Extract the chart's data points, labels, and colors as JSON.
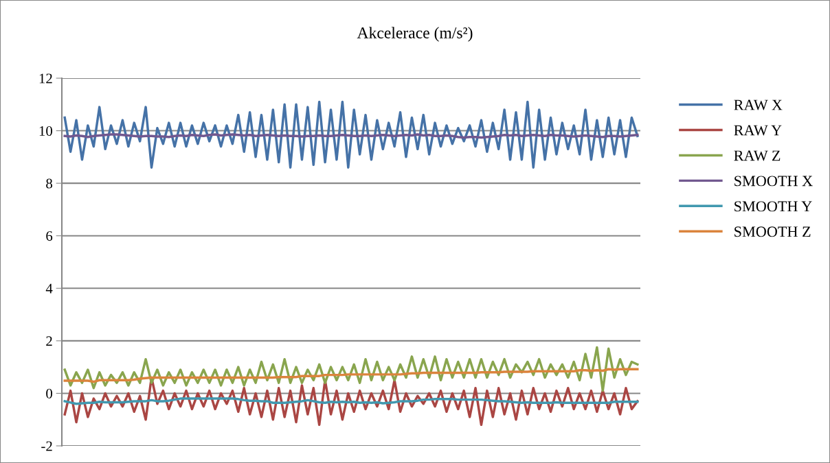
{
  "chart_data": {
    "type": "line",
    "title": "Akcelerace (m/s²)",
    "categories": [
      null,
      null,
      null,
      null,
      null,
      null,
      null,
      null,
      null,
      null,
      null,
      null,
      null,
      null,
      null,
      null,
      null,
      null,
      null,
      null,
      null,
      null,
      null,
      null,
      null,
      null,
      null,
      null,
      null,
      null,
      null,
      null,
      null,
      null,
      null,
      null,
      null,
      null,
      null,
      null,
      null,
      null,
      null,
      null,
      null,
      null,
      null,
      null,
      null,
      null,
      null,
      null,
      null,
      null,
      null,
      null,
      null,
      null,
      null,
      null,
      null,
      null,
      null,
      null,
      null,
      null,
      null,
      null,
      null,
      null,
      null,
      null,
      null,
      null,
      null,
      null,
      null,
      null,
      null,
      null,
      null,
      null,
      null,
      null,
      null,
      null,
      null,
      null,
      null,
      null,
      null,
      null,
      null,
      null,
      null,
      null,
      null,
      null,
      null,
      null
    ],
    "ylim": [
      -2,
      12
    ],
    "yticks": [
      -2,
      0,
      2,
      4,
      6,
      8,
      10,
      12
    ],
    "grid": "y",
    "legend": "right",
    "marker": "none",
    "line_style": "solid",
    "series": [
      {
        "name": "RAW X",
        "color": "#4572a7",
        "values": [
          10.5,
          9.2,
          10.4,
          8.9,
          10.2,
          9.4,
          10.9,
          9.3,
          10.2,
          9.5,
          10.4,
          9.4,
          10.3,
          9.6,
          10.9,
          8.6,
          10.1,
          9.5,
          10.3,
          9.4,
          10.3,
          9.4,
          10.2,
          9.5,
          10.3,
          9.6,
          10.2,
          9.4,
          10.2,
          9.5,
          10.6,
          9.2,
          10.7,
          9.0,
          10.6,
          8.9,
          10.8,
          8.8,
          11.0,
          8.6,
          11.0,
          8.9,
          10.9,
          8.7,
          11.1,
          8.8,
          10.8,
          8.9,
          11.1,
          8.6,
          10.8,
          9.1,
          10.6,
          8.9,
          10.4,
          9.3,
          10.3,
          9.4,
          10.7,
          9.0,
          10.5,
          9.3,
          10.6,
          9.1,
          10.3,
          9.4,
          10.2,
          9.5,
          10.1,
          9.6,
          10.2,
          9.4,
          10.4,
          9.2,
          10.3,
          9.3,
          10.8,
          8.9,
          10.7,
          8.9,
          11.1,
          8.6,
          10.8,
          8.9,
          10.5,
          9.1,
          10.3,
          9.3,
          10.2,
          9.1,
          10.8,
          8.9,
          10.4,
          9.0,
          10.5,
          9.1,
          10.4,
          9.0,
          10.5,
          9.8
        ]
      },
      {
        "name": "RAW Y",
        "color": "#aa4643",
        "values": [
          -0.8,
          0.1,
          -1.1,
          0.0,
          -0.9,
          -0.2,
          -0.6,
          0.0,
          -0.5,
          -0.1,
          -0.5,
          0.0,
          -0.7,
          -0.1,
          -1.0,
          0.6,
          -0.4,
          0.1,
          -0.6,
          0.0,
          -0.5,
          0.1,
          -0.6,
          0.0,
          -0.5,
          0.1,
          -0.6,
          0.0,
          -0.4,
          0.1,
          -0.7,
          0.2,
          -0.8,
          0.0,
          -0.9,
          0.1,
          -1.0,
          0.2,
          -0.9,
          0.1,
          -1.1,
          0.3,
          -0.8,
          0.2,
          -1.2,
          0.5,
          -0.8,
          0.1,
          -1.0,
          0.0,
          -0.7,
          0.1,
          -0.6,
          0.0,
          -0.5,
          0.1,
          -0.6,
          0.5,
          -0.7,
          0.0,
          -0.5,
          -0.1,
          -0.4,
          0.0,
          -0.5,
          0.1,
          -0.7,
          0.0,
          -0.6,
          0.1,
          -0.9,
          0.2,
          -1.2,
          0.1,
          -0.9,
          0.2,
          -0.8,
          0.0,
          -1.0,
          0.1,
          -0.8,
          0.2,
          -0.6,
          0.0,
          -0.7,
          0.1,
          -0.5,
          0.2,
          -0.6,
          0.0,
          -0.6,
          0.1,
          -0.7,
          0.1,
          -0.6,
          0.0,
          -0.8,
          0.2,
          -0.6,
          -0.3
        ]
      },
      {
        "name": "RAW Z",
        "color": "#89a54e",
        "values": [
          0.9,
          0.3,
          0.8,
          0.4,
          0.9,
          0.2,
          0.8,
          0.3,
          0.7,
          0.4,
          0.8,
          0.3,
          0.8,
          0.4,
          1.3,
          0.4,
          0.9,
          0.3,
          0.8,
          0.4,
          0.9,
          0.3,
          0.8,
          0.4,
          0.9,
          0.4,
          0.9,
          0.3,
          0.9,
          0.4,
          1.0,
          0.3,
          0.9,
          0.4,
          1.2,
          0.5,
          1.1,
          0.4,
          1.3,
          0.4,
          1.0,
          0.4,
          0.9,
          0.5,
          1.1,
          0.4,
          1.0,
          0.5,
          1.0,
          0.5,
          1.1,
          0.4,
          1.3,
          0.5,
          1.2,
          0.5,
          1.0,
          0.5,
          1.1,
          0.6,
          1.4,
          0.6,
          1.3,
          0.6,
          1.4,
          0.5,
          1.3,
          0.6,
          1.2,
          0.6,
          1.3,
          0.6,
          1.3,
          0.6,
          1.2,
          0.7,
          1.3,
          0.6,
          1.1,
          0.8,
          1.2,
          0.7,
          1.3,
          0.6,
          1.1,
          0.7,
          1.1,
          0.6,
          1.2,
          0.5,
          1.5,
          0.6,
          1.75,
          0.1,
          1.7,
          0.6,
          1.3,
          0.7,
          1.2,
          1.1
        ]
      },
      {
        "name": "SMOOTH X",
        "color": "#71588f",
        "values": [
          9.8,
          9.78,
          9.82,
          9.8,
          9.76,
          9.8,
          9.82,
          9.84,
          9.86,
          9.86,
          9.84,
          9.82,
          9.8,
          9.78,
          9.8,
          9.8,
          9.78,
          9.78,
          9.76,
          9.8,
          9.82,
          9.8,
          9.84,
          9.82,
          9.8,
          9.84,
          9.86,
          9.82,
          9.84,
          9.86,
          9.84,
          9.82,
          9.84,
          9.8,
          9.82,
          9.84,
          9.82,
          9.8,
          9.82,
          9.8,
          9.8,
          9.78,
          9.8,
          9.8,
          9.82,
          9.8,
          9.8,
          9.82,
          9.84,
          9.82,
          9.8,
          9.8,
          9.82,
          9.8,
          9.82,
          9.84,
          9.82,
          9.8,
          9.82,
          9.84,
          9.82,
          9.86,
          9.82,
          9.84,
          9.8,
          9.8,
          9.82,
          9.8,
          9.76,
          9.74,
          9.76,
          9.76,
          9.74,
          9.76,
          9.78,
          9.8,
          9.84,
          9.82,
          9.84,
          9.8,
          9.82,
          9.84,
          9.82,
          9.8,
          9.84,
          9.82,
          9.82,
          9.8,
          9.78,
          9.8,
          9.82,
          9.8,
          9.78,
          9.76,
          9.8,
          9.8,
          9.78,
          9.8,
          9.82,
          9.84
        ]
      },
      {
        "name": "SMOOTH Y",
        "color": "#4198af",
        "values": [
          -0.3,
          -0.35,
          -0.4,
          -0.38,
          -0.36,
          -0.36,
          -0.32,
          -0.34,
          -0.34,
          -0.34,
          -0.34,
          -0.32,
          -0.3,
          -0.3,
          -0.3,
          -0.26,
          -0.3,
          -0.3,
          -0.28,
          -0.24,
          -0.2,
          -0.2,
          -0.2,
          -0.2,
          -0.2,
          -0.2,
          -0.2,
          -0.2,
          -0.2,
          -0.2,
          -0.22,
          -0.26,
          -0.28,
          -0.28,
          -0.3,
          -0.3,
          -0.36,
          -0.36,
          -0.36,
          -0.34,
          -0.32,
          -0.3,
          -0.26,
          -0.3,
          -0.34,
          -0.36,
          -0.32,
          -0.34,
          -0.32,
          -0.34,
          -0.32,
          -0.36,
          -0.34,
          -0.36,
          -0.34,
          -0.38,
          -0.36,
          -0.34,
          -0.3,
          -0.3,
          -0.3,
          -0.28,
          -0.24,
          -0.24,
          -0.22,
          -0.22,
          -0.22,
          -0.22,
          -0.24,
          -0.24,
          -0.24,
          -0.24,
          -0.24,
          -0.26,
          -0.28,
          -0.3,
          -0.3,
          -0.32,
          -0.34,
          -0.36,
          -0.34,
          -0.36,
          -0.36,
          -0.36,
          -0.36,
          -0.34,
          -0.36,
          -0.36,
          -0.36,
          -0.36,
          -0.36,
          -0.36,
          -0.36,
          -0.36,
          -0.36,
          -0.32,
          -0.32,
          -0.32,
          -0.32,
          -0.32
        ]
      },
      {
        "name": "SMOOTH Z",
        "color": "#db843d",
        "values": [
          0.48,
          0.48,
          0.48,
          0.48,
          0.48,
          0.44,
          0.5,
          0.5,
          0.5,
          0.5,
          0.5,
          0.5,
          0.52,
          0.56,
          0.58,
          0.6,
          0.6,
          0.6,
          0.6,
          0.6,
          0.6,
          0.6,
          0.6,
          0.6,
          0.6,
          0.6,
          0.6,
          0.6,
          0.6,
          0.6,
          0.6,
          0.6,
          0.6,
          0.6,
          0.6,
          0.6,
          0.6,
          0.62,
          0.62,
          0.62,
          0.62,
          0.66,
          0.66,
          0.66,
          0.66,
          0.7,
          0.7,
          0.7,
          0.7,
          0.72,
          0.72,
          0.72,
          0.72,
          0.72,
          0.72,
          0.72,
          0.72,
          0.72,
          0.72,
          0.74,
          0.76,
          0.76,
          0.78,
          0.78,
          0.78,
          0.78,
          0.78,
          0.78,
          0.78,
          0.78,
          0.78,
          0.78,
          0.8,
          0.8,
          0.8,
          0.8,
          0.82,
          0.82,
          0.82,
          0.82,
          0.82,
          0.84,
          0.84,
          0.84,
          0.84,
          0.84,
          0.84,
          0.84,
          0.84,
          0.88,
          0.88,
          0.86,
          0.88,
          0.86,
          0.92,
          0.9,
          0.92,
          0.92,
          0.92,
          0.92
        ]
      }
    ]
  }
}
